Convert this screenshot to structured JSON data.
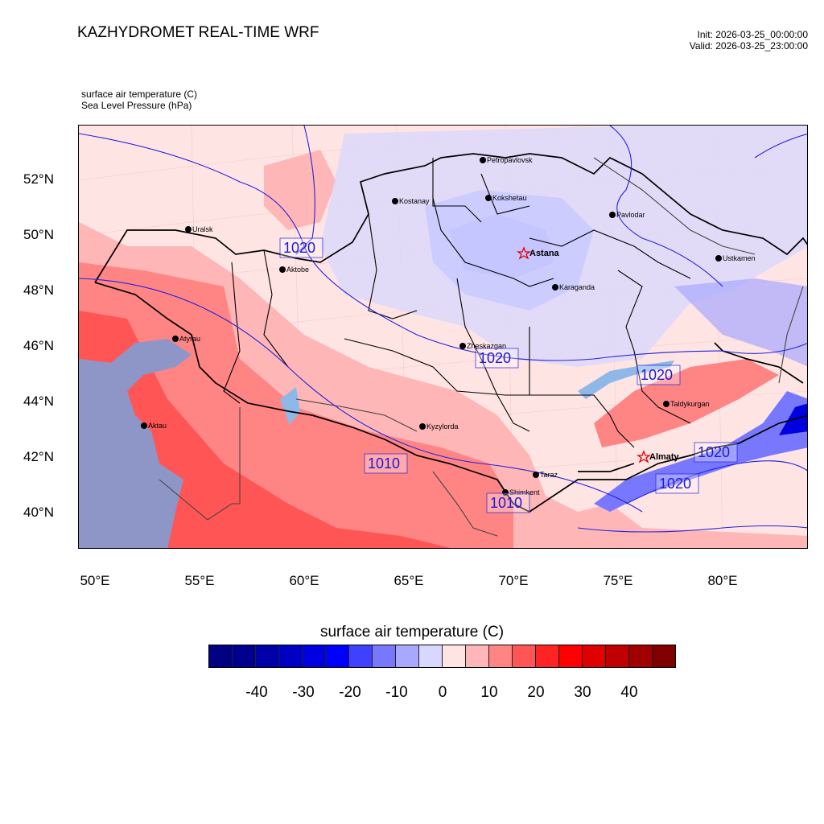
{
  "title": "KAZHYDROMET REAL-TIME WRF",
  "init_label": "Init: 2026-03-25_00:00:00",
  "valid_label": "Valid: 2026-03-25_23:00:00",
  "field1_label": "surface air temperature   (C)",
  "field2_label": "Sea Level Pressure   (hPa)",
  "colorbar": {
    "title": "surface air temperature  (C)",
    "colors": [
      "#000080",
      "#00008f",
      "#0000a8",
      "#0000c4",
      "#0000e0",
      "#0000ff",
      "#4040ff",
      "#7878ff",
      "#a8a8ff",
      "#d8d8ff",
      "#ffe4e4",
      "#ffb6b6",
      "#ff8585",
      "#ff5555",
      "#ff2424",
      "#ff0000",
      "#e00000",
      "#c00000",
      "#a00000",
      "#800000"
    ],
    "ticks": [
      "-40",
      "-30",
      "-20",
      "-10",
      "0",
      "10",
      "20",
      "30",
      "40"
    ]
  },
  "lat_ticks": [
    "52°N",
    "50°N",
    "48°N",
    "46°N",
    "44°N",
    "42°N",
    "40°N"
  ],
  "lon_ticks": [
    "50°E",
    "55°E",
    "60°E",
    "65°E",
    "70°E",
    "75°E",
    "80°E"
  ],
  "cities": [
    {
      "name": "Petropavlovsk",
      "capital": false
    },
    {
      "name": "Kostanay",
      "capital": false
    },
    {
      "name": "Kokshetau",
      "capital": false
    },
    {
      "name": "Uralsk",
      "capital": false
    },
    {
      "name": "Pavlodar",
      "capital": false
    },
    {
      "name": "Aktobe",
      "capital": false
    },
    {
      "name": "Astana",
      "capital": true
    },
    {
      "name": "Ustkamen",
      "capital": false
    },
    {
      "name": "Karaganda",
      "capital": false
    },
    {
      "name": "Atyrau",
      "capital": false
    },
    {
      "name": "Zheskazgan",
      "capital": false
    },
    {
      "name": "Taldykurgan",
      "capital": false
    },
    {
      "name": "Kyzylorda",
      "capital": false
    },
    {
      "name": "Aktau",
      "capital": false
    },
    {
      "name": "Almaty",
      "capital": true
    },
    {
      "name": "Taraz",
      "capital": false
    },
    {
      "name": "Shimkent",
      "capital": false
    }
  ],
  "isobar_labels": [
    "1020",
    "1020",
    "1020",
    "1010",
    "1010",
    "1020",
    "1020"
  ]
}
